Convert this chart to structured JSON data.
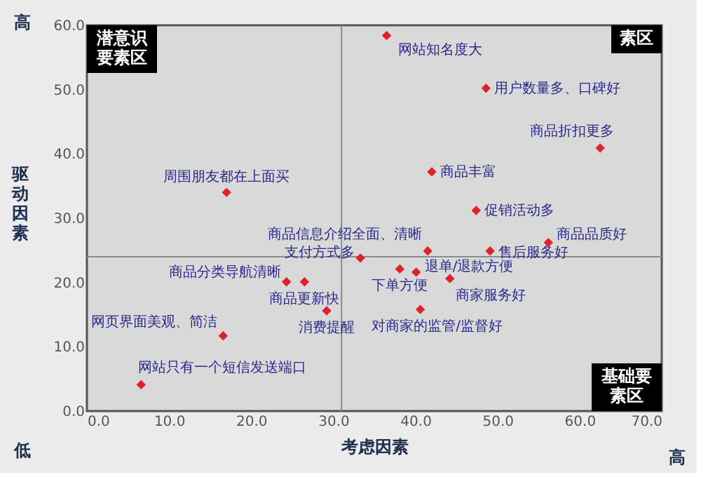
{
  "chart_data": {
    "type": "scatter",
    "xlabel": "考虑因素",
    "ylabel": "驱动因素",
    "marker": "diamond",
    "grid": false,
    "xlim": [
      0,
      70
    ],
    "ylim": [
      0,
      60
    ],
    "xticks": [
      {
        "value": 0,
        "label": "0.0"
      },
      {
        "value": 10,
        "label": "10.0"
      },
      {
        "value": 20,
        "label": "20.0"
      },
      {
        "value": 30,
        "label": "30.0"
      },
      {
        "value": 40,
        "label": "40.0"
      },
      {
        "value": 50,
        "label": "50.0"
      },
      {
        "value": 60,
        "label": "60.0"
      },
      {
        "value": 70,
        "label": "70.0"
      }
    ],
    "yticks": [
      {
        "value": 0,
        "label": "0.0"
      },
      {
        "value": 10,
        "label": "10.0"
      },
      {
        "value": 20,
        "label": "20.0"
      },
      {
        "value": 30,
        "label": "30.0"
      },
      {
        "value": 40,
        "label": "40.0"
      },
      {
        "value": 50,
        "label": "50.0"
      },
      {
        "value": 60,
        "label": "60.0"
      }
    ],
    "series": [
      {
        "color": "#e0202a",
        "x": [
          36.5,
          48.6,
          62.5,
          42.0,
          47.4,
          17.0,
          56.2,
          49.1,
          41.5,
          33.3,
          38.1,
          40.1,
          44.2,
          40.6,
          24.3,
          26.5,
          29.2,
          16.6,
          6.6
        ],
        "values": [
          58.4,
          50.2,
          40.9,
          37.2,
          31.2,
          34.0,
          26.2,
          24.9,
          24.9,
          23.8,
          22.1,
          21.6,
          20.6,
          15.8,
          20.1,
          20.1,
          15.6,
          11.7,
          4.1
        ]
      }
    ],
    "ref_lines": [
      {
        "axis": "x",
        "value": 31,
        "color": "#8c8c8c"
      },
      {
        "axis": "y",
        "value": 24,
        "color": "#8c8c8c"
      }
    ],
    "annotations": [
      {
        "text": "网站知名度大",
        "x": 36.5,
        "y": 58.4
      },
      {
        "text": "用户数量多、口碑好",
        "x": 48.6,
        "y": 50.2
      },
      {
        "text": "商品折扣更多",
        "x": 62.5,
        "y": 40.9
      },
      {
        "text": "商品丰富",
        "x": 42.0,
        "y": 37.2
      },
      {
        "text": "促销活动多",
        "x": 47.4,
        "y": 31.2
      },
      {
        "text": "周围朋友都在上面买",
        "x": 17.0,
        "y": 34.0
      },
      {
        "text": "商品品质好",
        "x": 56.2,
        "y": 26.2
      },
      {
        "text": "售后服务好",
        "x": 49.1,
        "y": 24.9
      },
      {
        "text": "商品信息介绍全面、清晰",
        "x": 41.5,
        "y": 24.9
      },
      {
        "text": "支付方式多",
        "x": 33.3,
        "y": 23.8
      },
      {
        "text": "下单方便",
        "x": 38.1,
        "y": 22.1
      },
      {
        "text": "退单/退款方便",
        "x": 40.1,
        "y": 21.6
      },
      {
        "text": "商家服务好",
        "x": 44.2,
        "y": 20.6
      },
      {
        "text": "对商家的监管/监督好",
        "x": 40.6,
        "y": 15.8
      },
      {
        "text": "商品分类导航清晰",
        "x": 24.3,
        "y": 20.1
      },
      {
        "text": "商品更新快",
        "x": 26.5,
        "y": 20.1
      },
      {
        "text": "消费提醒",
        "x": 29.2,
        "y": 15.6
      },
      {
        "text": "网页界面美观、简洁",
        "x": 16.6,
        "y": 11.7
      },
      {
        "text": "网站只有一个短信发送端口",
        "x": 6.6,
        "y": 4.1
      },
      "潜意识要素区",
      "素区",
      "基础要素区",
      "高",
      "低",
      "高"
    ]
  }
}
